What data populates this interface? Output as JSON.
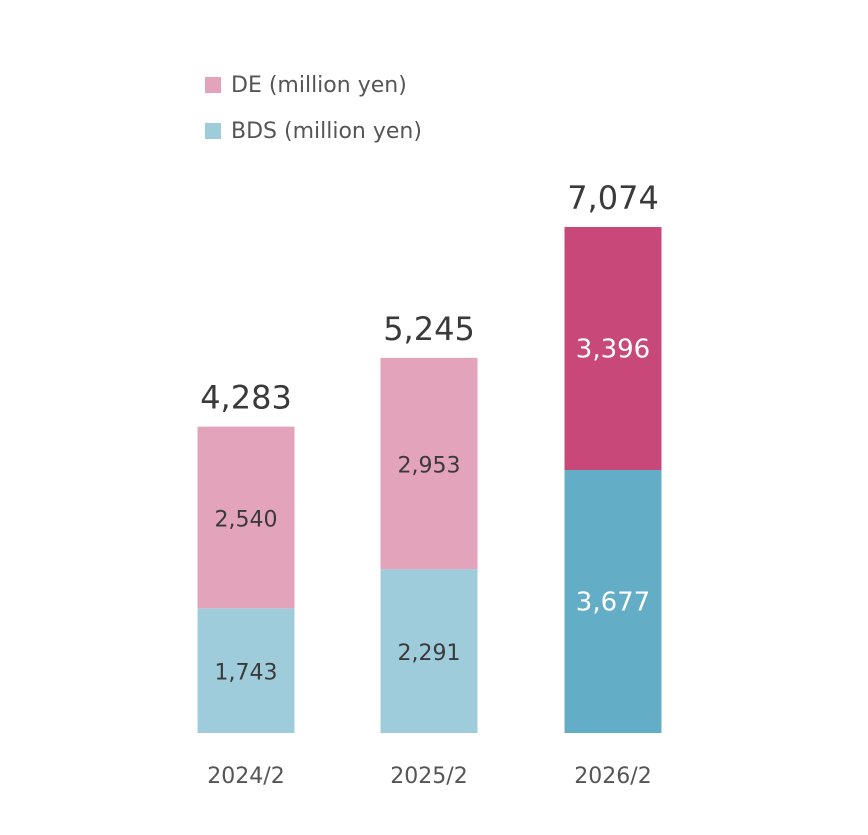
{
  "chart_data": {
    "type": "bar",
    "stacked": true,
    "categories": [
      "2024/2",
      "2025/2",
      "2026/2"
    ],
    "series": [
      {
        "name": "BDS (million yen)",
        "values": [
          1743,
          2291,
          3677
        ],
        "labels": [
          "1,743",
          "2,291",
          "3,677"
        ]
      },
      {
        "name": "DE (million yen)",
        "values": [
          2540,
          2953,
          3396
        ],
        "labels": [
          "2,540",
          "2,953",
          "3,396"
        ]
      }
    ],
    "totals": [
      4283,
      5245,
      7074
    ],
    "total_labels": [
      "4,283",
      "5,245",
      "7,074"
    ],
    "legend": [
      {
        "label": "DE (million yen)",
        "color": "#e2a3bb"
      },
      {
        "label": "BDS (million yen)",
        "color": "#9fccdb"
      }
    ],
    "legend_position": "top-left",
    "ylim": [
      0,
      7074
    ],
    "grid": false,
    "colors": {
      "de": "#e2a3bb",
      "bds": "#9fccdb",
      "de_highlight": "#c8487a",
      "bds_highlight": "#64adc6",
      "label_dark": "#3a3a3a",
      "label_light": "#ffffff",
      "axis_label": "#555555"
    },
    "highlight_index": 2
  }
}
